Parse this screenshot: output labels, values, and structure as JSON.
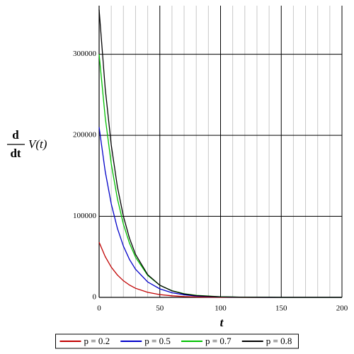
{
  "chart_data": {
    "type": "line",
    "ylabel_numerator": "d",
    "ylabel_denominator": "dt",
    "ylabel_function": "V(t)",
    "xlabel": "t",
    "x": [
      0,
      5,
      10,
      15,
      20,
      25,
      30,
      40,
      50,
      60,
      70,
      80,
      100,
      120,
      150,
      200
    ],
    "series": [
      {
        "name": "p = 0.2",
        "color": "#c00000",
        "values": [
          68000,
          50400,
          37300,
          27700,
          20500,
          15200,
          11200,
          6200,
          3400,
          1900,
          1000,
          560,
          170,
          50,
          10,
          0
        ]
      },
      {
        "name": "p = 0.5",
        "color": "#0000c8",
        "values": [
          210000,
          155600,
          115300,
          85500,
          63200,
          46800,
          34700,
          19000,
          10500,
          5700,
          3200,
          1700,
          520,
          150,
          20,
          0
        ]
      },
      {
        "name": "p = 0.7",
        "color": "#00c000",
        "values": [
          300000,
          222300,
          164700,
          122100,
          90300,
          66900,
          49500,
          27200,
          14900,
          8200,
          4500,
          2500,
          750,
          210,
          30,
          0
        ]
      },
      {
        "name": "p = 0.8",
        "color": "#000000",
        "values": [
          355000,
          258000,
          188000,
          137000,
          100000,
          73000,
          53000,
          28000,
          15000,
          8000,
          4200,
          2200,
          600,
          150,
          20,
          0
        ]
      }
    ],
    "xlim": [
      0,
      200
    ],
    "ylim": [
      0,
      360000
    ],
    "xticks": [
      0,
      50,
      100,
      150,
      200
    ],
    "x_minor_ticks": [
      10,
      20,
      30,
      40,
      60,
      70,
      80,
      90,
      110,
      120,
      130,
      140,
      160,
      170,
      180,
      190
    ],
    "yticks": [
      0,
      100000,
      200000,
      300000
    ],
    "grid": true,
    "legend": "bottom"
  }
}
